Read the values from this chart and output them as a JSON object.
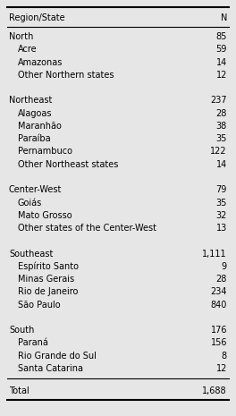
{
  "bg_color": "#e6e6e6",
  "header": [
    "Region/State",
    "N"
  ],
  "rows": [
    {
      "label": "North",
      "value": "85",
      "indent": false
    },
    {
      "label": "Acre",
      "value": "59",
      "indent": true
    },
    {
      "label": "Amazonas",
      "value": "14",
      "indent": true
    },
    {
      "label": "Other Northern states",
      "value": "12",
      "indent": true
    },
    {
      "label": "",
      "value": "",
      "indent": false
    },
    {
      "label": "Northeast",
      "value": "237",
      "indent": false
    },
    {
      "label": "Alagoas",
      "value": "28",
      "indent": true
    },
    {
      "label": "Maranhão",
      "value": "38",
      "indent": true
    },
    {
      "label": "Paraíba",
      "value": "35",
      "indent": true
    },
    {
      "label": "Pernambuco",
      "value": "122",
      "indent": true
    },
    {
      "label": "Other Northeast states",
      "value": "14",
      "indent": true
    },
    {
      "label": "",
      "value": "",
      "indent": false
    },
    {
      "label": "Center-West",
      "value": "79",
      "indent": false
    },
    {
      "label": "Goiás",
      "value": "35",
      "indent": true
    },
    {
      "label": "Mato Grosso",
      "value": "32",
      "indent": true
    },
    {
      "label": "Other states of the Center-West",
      "value": "13",
      "indent": true
    },
    {
      "label": "",
      "value": "",
      "indent": false
    },
    {
      "label": "Southeast",
      "value": "1,111",
      "indent": false
    },
    {
      "label": "Espírito Santo",
      "value": "9",
      "indent": true
    },
    {
      "label": "Minas Gerais",
      "value": "28",
      "indent": true
    },
    {
      "label": "Rio de Janeiro",
      "value": "234",
      "indent": true
    },
    {
      "label": "São Paulo",
      "value": "840",
      "indent": true
    },
    {
      "label": "",
      "value": "",
      "indent": false
    },
    {
      "label": "South",
      "value": "176",
      "indent": false
    },
    {
      "label": "Paraná",
      "value": "156",
      "indent": true
    },
    {
      "label": "Rio Grande do Sul",
      "value": "8",
      "indent": true
    },
    {
      "label": "Santa Catarina",
      "value": "12",
      "indent": true
    }
  ],
  "total_label": "Total",
  "total_value": "1,688",
  "font_size": 7.0,
  "indent_points": 10
}
